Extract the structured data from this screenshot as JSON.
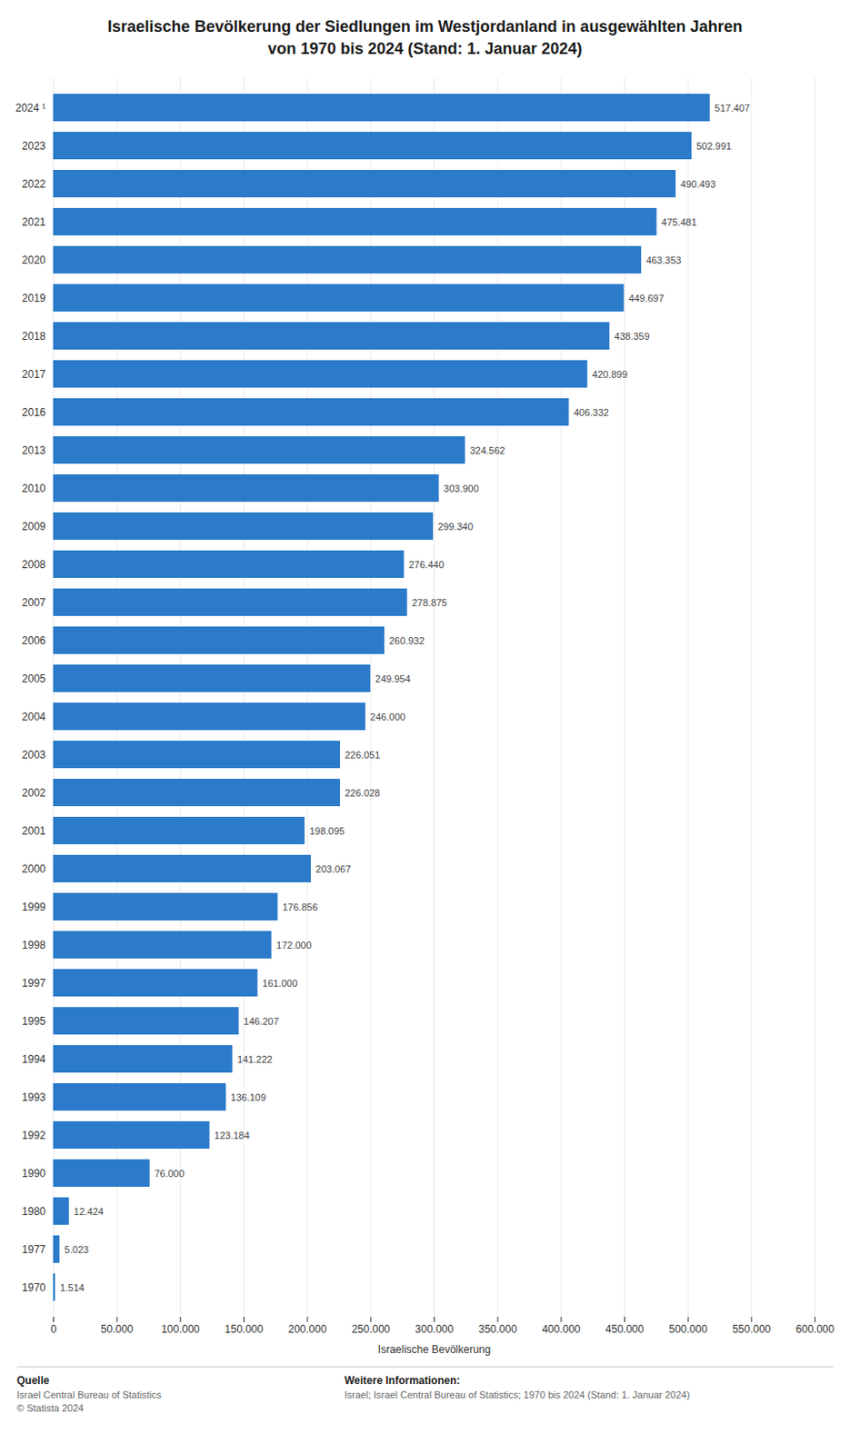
{
  "chart_data": {
    "type": "bar",
    "orientation": "horizontal",
    "title": "Israelische Bevölkerung der Siedlungen im Westjordanland in ausgewählten Jahren\nvon 1970 bis 2024 (Stand: 1. Januar 2024)",
    "xlabel": "Israelische Bevölkerung",
    "categories": [
      "2024 ¹",
      "2023",
      "2022",
      "2021",
      "2020",
      "2019",
      "2018",
      "2017",
      "2016",
      "2013",
      "2010",
      "2009",
      "2008",
      "2007",
      "2006",
      "2005",
      "2004",
      "2003",
      "2002",
      "2001",
      "2000",
      "1999",
      "1998",
      "1997",
      "1995",
      "1994",
      "1993",
      "1992",
      "1990",
      "1980",
      "1977",
      "1970"
    ],
    "values": [
      517407,
      502991,
      490493,
      475481,
      463353,
      449697,
      438359,
      420899,
      406332,
      324562,
      303900,
      299340,
      276440,
      278875,
      260932,
      249954,
      246000,
      226051,
      226028,
      198095,
      203067,
      176856,
      172000,
      161000,
      146207,
      141222,
      136109,
      123184,
      76000,
      12424,
      5023,
      1514
    ],
    "value_labels": [
      "517.407",
      "502.991",
      "490.493",
      "475.481",
      "463.353",
      "449.697",
      "438.359",
      "420.899",
      "406.332",
      "324.562",
      "303.900",
      "299.340",
      "276.440",
      "278.875",
      "260.932",
      "249.954",
      "246.000",
      "226.051",
      "226.028",
      "198.095",
      "203.067",
      "176.856",
      "172.000",
      "161.000",
      "146.207",
      "141.222",
      "136.109",
      "123.184",
      "76.000",
      "12.424",
      "5.023",
      "1.514"
    ],
    "data_labels": true,
    "color": "#2b7bca",
    "grid": true,
    "xlim": [
      0,
      600000
    ],
    "xticks": [
      0,
      {
        "value": 50000,
        "label": "50.000"
      },
      {
        "value": 100000,
        "label": "100.000"
      },
      {
        "value": 150000,
        "label": "150.000"
      },
      {
        "value": 200000,
        "label": "200.000"
      },
      {
        "value": 250000,
        "label": "250.000"
      },
      {
        "value": 300000,
        "label": "300.000"
      },
      {
        "value": 350000,
        "label": "350.000"
      },
      {
        "value": 400000,
        "label": "400.000"
      },
      {
        "value": 450000,
        "label": "450.000"
      },
      {
        "value": 500000,
        "label": "500.000"
      },
      {
        "value": 550000,
        "label": "550.000"
      },
      {
        "value": 600000,
        "label": "600.000"
      }
    ],
    "footnotes": [
      {
        "heading": "Quelle",
        "lines": [
          "Israel Central Bureau of Statistics",
          "© Statista 2024"
        ]
      },
      {
        "heading": "Weitere Informationen:",
        "lines": [
          "Israel; Israel Central Bureau of Statistics; 1970 bis 2024 (Stand: 1. Januar 2024)"
        ]
      }
    ]
  }
}
